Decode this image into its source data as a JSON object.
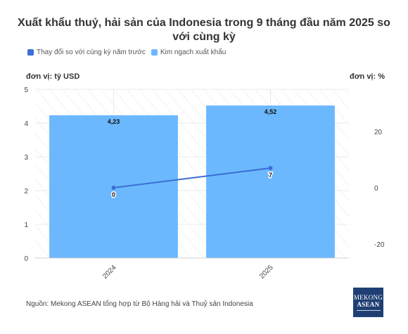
{
  "title": "Xuất khẩu thuỷ, hải sản của Indonesia trong 9 tháng đầu năm 2025 so với cùng kỳ",
  "legend": [
    {
      "label": "Thay đổi so với cùng kỳ năm trước",
      "color": "#3b6fd4"
    },
    {
      "label": "Kim ngạch xuất khẩu",
      "color": "#6cb8ff"
    }
  ],
  "unit_left": "đơn vị: tỷ USD",
  "unit_right": "đơn vị: %",
  "source": "Nguồn: Mekong ASEAN tổng hợp từ Bộ Hàng hải và Thuỷ sản Indonesia",
  "logo": {
    "line1": "MEKONG",
    "line2": "ASEAN"
  },
  "chart_data": {
    "type": "bar",
    "categories": [
      "2024",
      "2025"
    ],
    "series": [
      {
        "name": "Kim ngạch xuất khẩu",
        "type": "bar",
        "axis": "left",
        "values": [
          4.23,
          4.52
        ],
        "labels": [
          "4,23",
          "4,52"
        ],
        "color": "#6cb8ff"
      },
      {
        "name": "Thay đổi so với cùng kỳ năm trước",
        "type": "line",
        "axis": "right",
        "values": [
          0,
          7
        ],
        "labels": [
          "0",
          "7"
        ],
        "color": "#3b6fd4"
      }
    ],
    "y_left": {
      "min": 0,
      "max": 5,
      "ticks": [
        "0",
        "1",
        "2",
        "3",
        "4",
        "5"
      ]
    },
    "y_right": {
      "min": -25,
      "max": 35,
      "ticks": [
        "-20",
        "0",
        "20"
      ],
      "tick_values": [
        -20,
        0,
        20
      ]
    },
    "grid": true,
    "legend_position": "top-left"
  }
}
